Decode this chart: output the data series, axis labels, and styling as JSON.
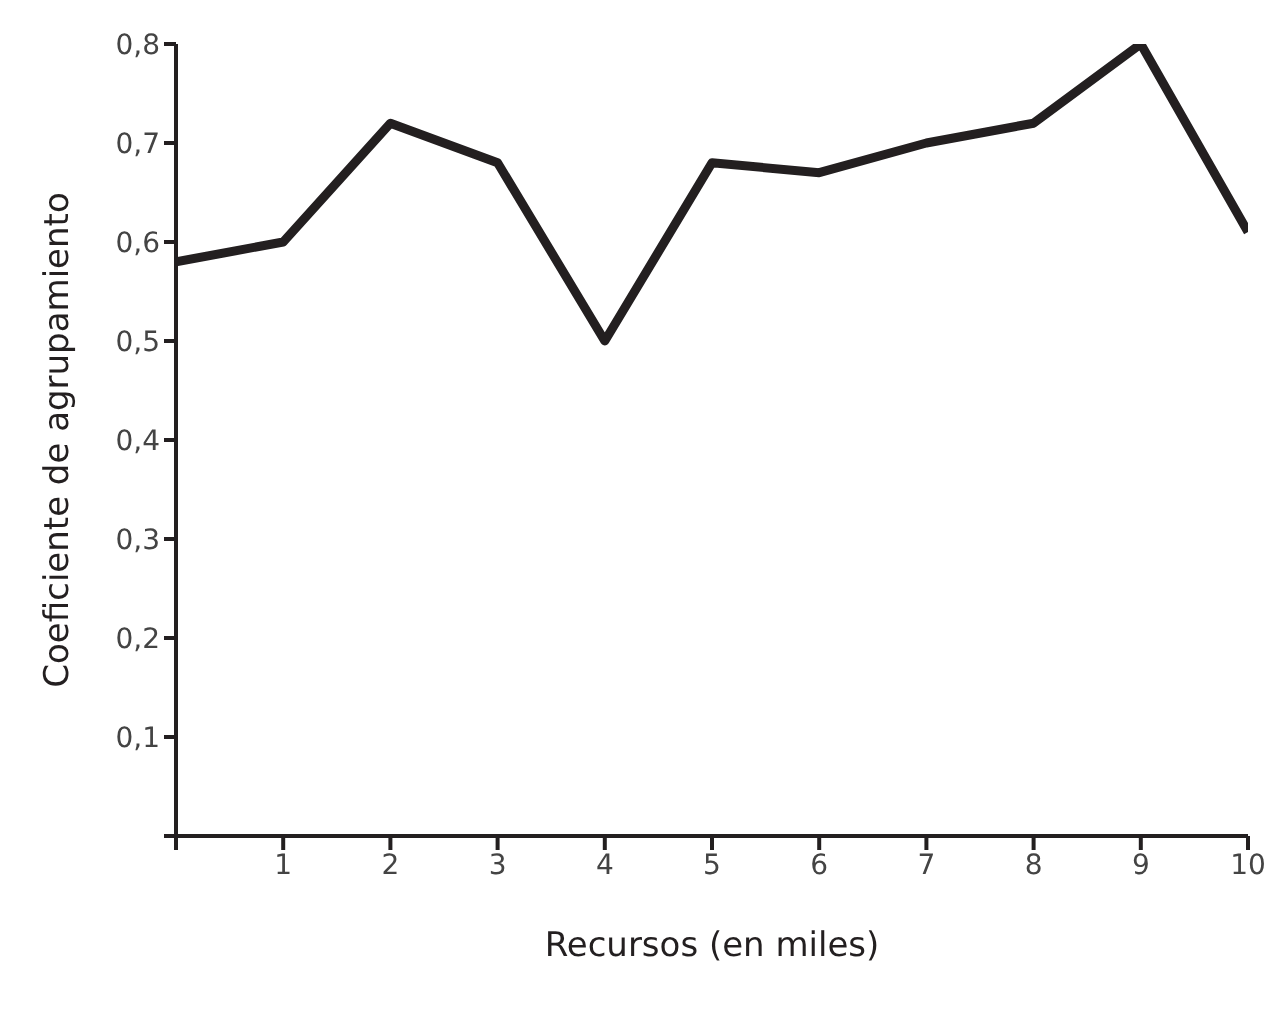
{
  "chart_data": {
    "type": "line",
    "xlabel": "Recursos (en miles)",
    "ylabel": "Coeficiente de agrupamiento",
    "x": [
      0,
      1,
      2,
      3,
      4,
      5,
      6,
      7,
      8,
      9,
      10
    ],
    "series": [
      {
        "color": "#231f20",
        "values": [
          0.58,
          0.6,
          0.72,
          0.68,
          0.5,
          0.68,
          0.67,
          0.7,
          0.72,
          0.8,
          0.61
        ]
      }
    ],
    "xlim": [
      0,
      10
    ],
    "xticks": [
      {
        "value": 0,
        "label": null
      },
      {
        "value": 1,
        "label": "1"
      },
      {
        "value": 2,
        "label": "2"
      },
      {
        "value": 3,
        "label": "3"
      },
      {
        "value": 4,
        "label": "4"
      },
      {
        "value": 5,
        "label": "5"
      },
      {
        "value": 6,
        "label": "6"
      },
      {
        "value": 7,
        "label": "7"
      },
      {
        "value": 8,
        "label": "8"
      },
      {
        "value": 9,
        "label": "9"
      },
      {
        "value": 10,
        "label": "10"
      }
    ],
    "ylim": [
      0,
      0.8
    ],
    "yticks": [
      {
        "value": 0,
        "label": null
      },
      {
        "value": 0.1,
        "label": "0,1"
      },
      {
        "value": 0.2,
        "label": "0,2"
      },
      {
        "value": 0.3,
        "label": "0,3"
      },
      {
        "value": 0.4,
        "label": "0,4"
      },
      {
        "value": 0.5,
        "label": "0,5"
      },
      {
        "value": 0.6,
        "label": "0,6"
      },
      {
        "value": 0.7,
        "label": "0,7"
      },
      {
        "value": 0.8,
        "label": "0,8"
      }
    ],
    "grid": false,
    "legend": false,
    "marker": "none",
    "line_style": "solid"
  }
}
